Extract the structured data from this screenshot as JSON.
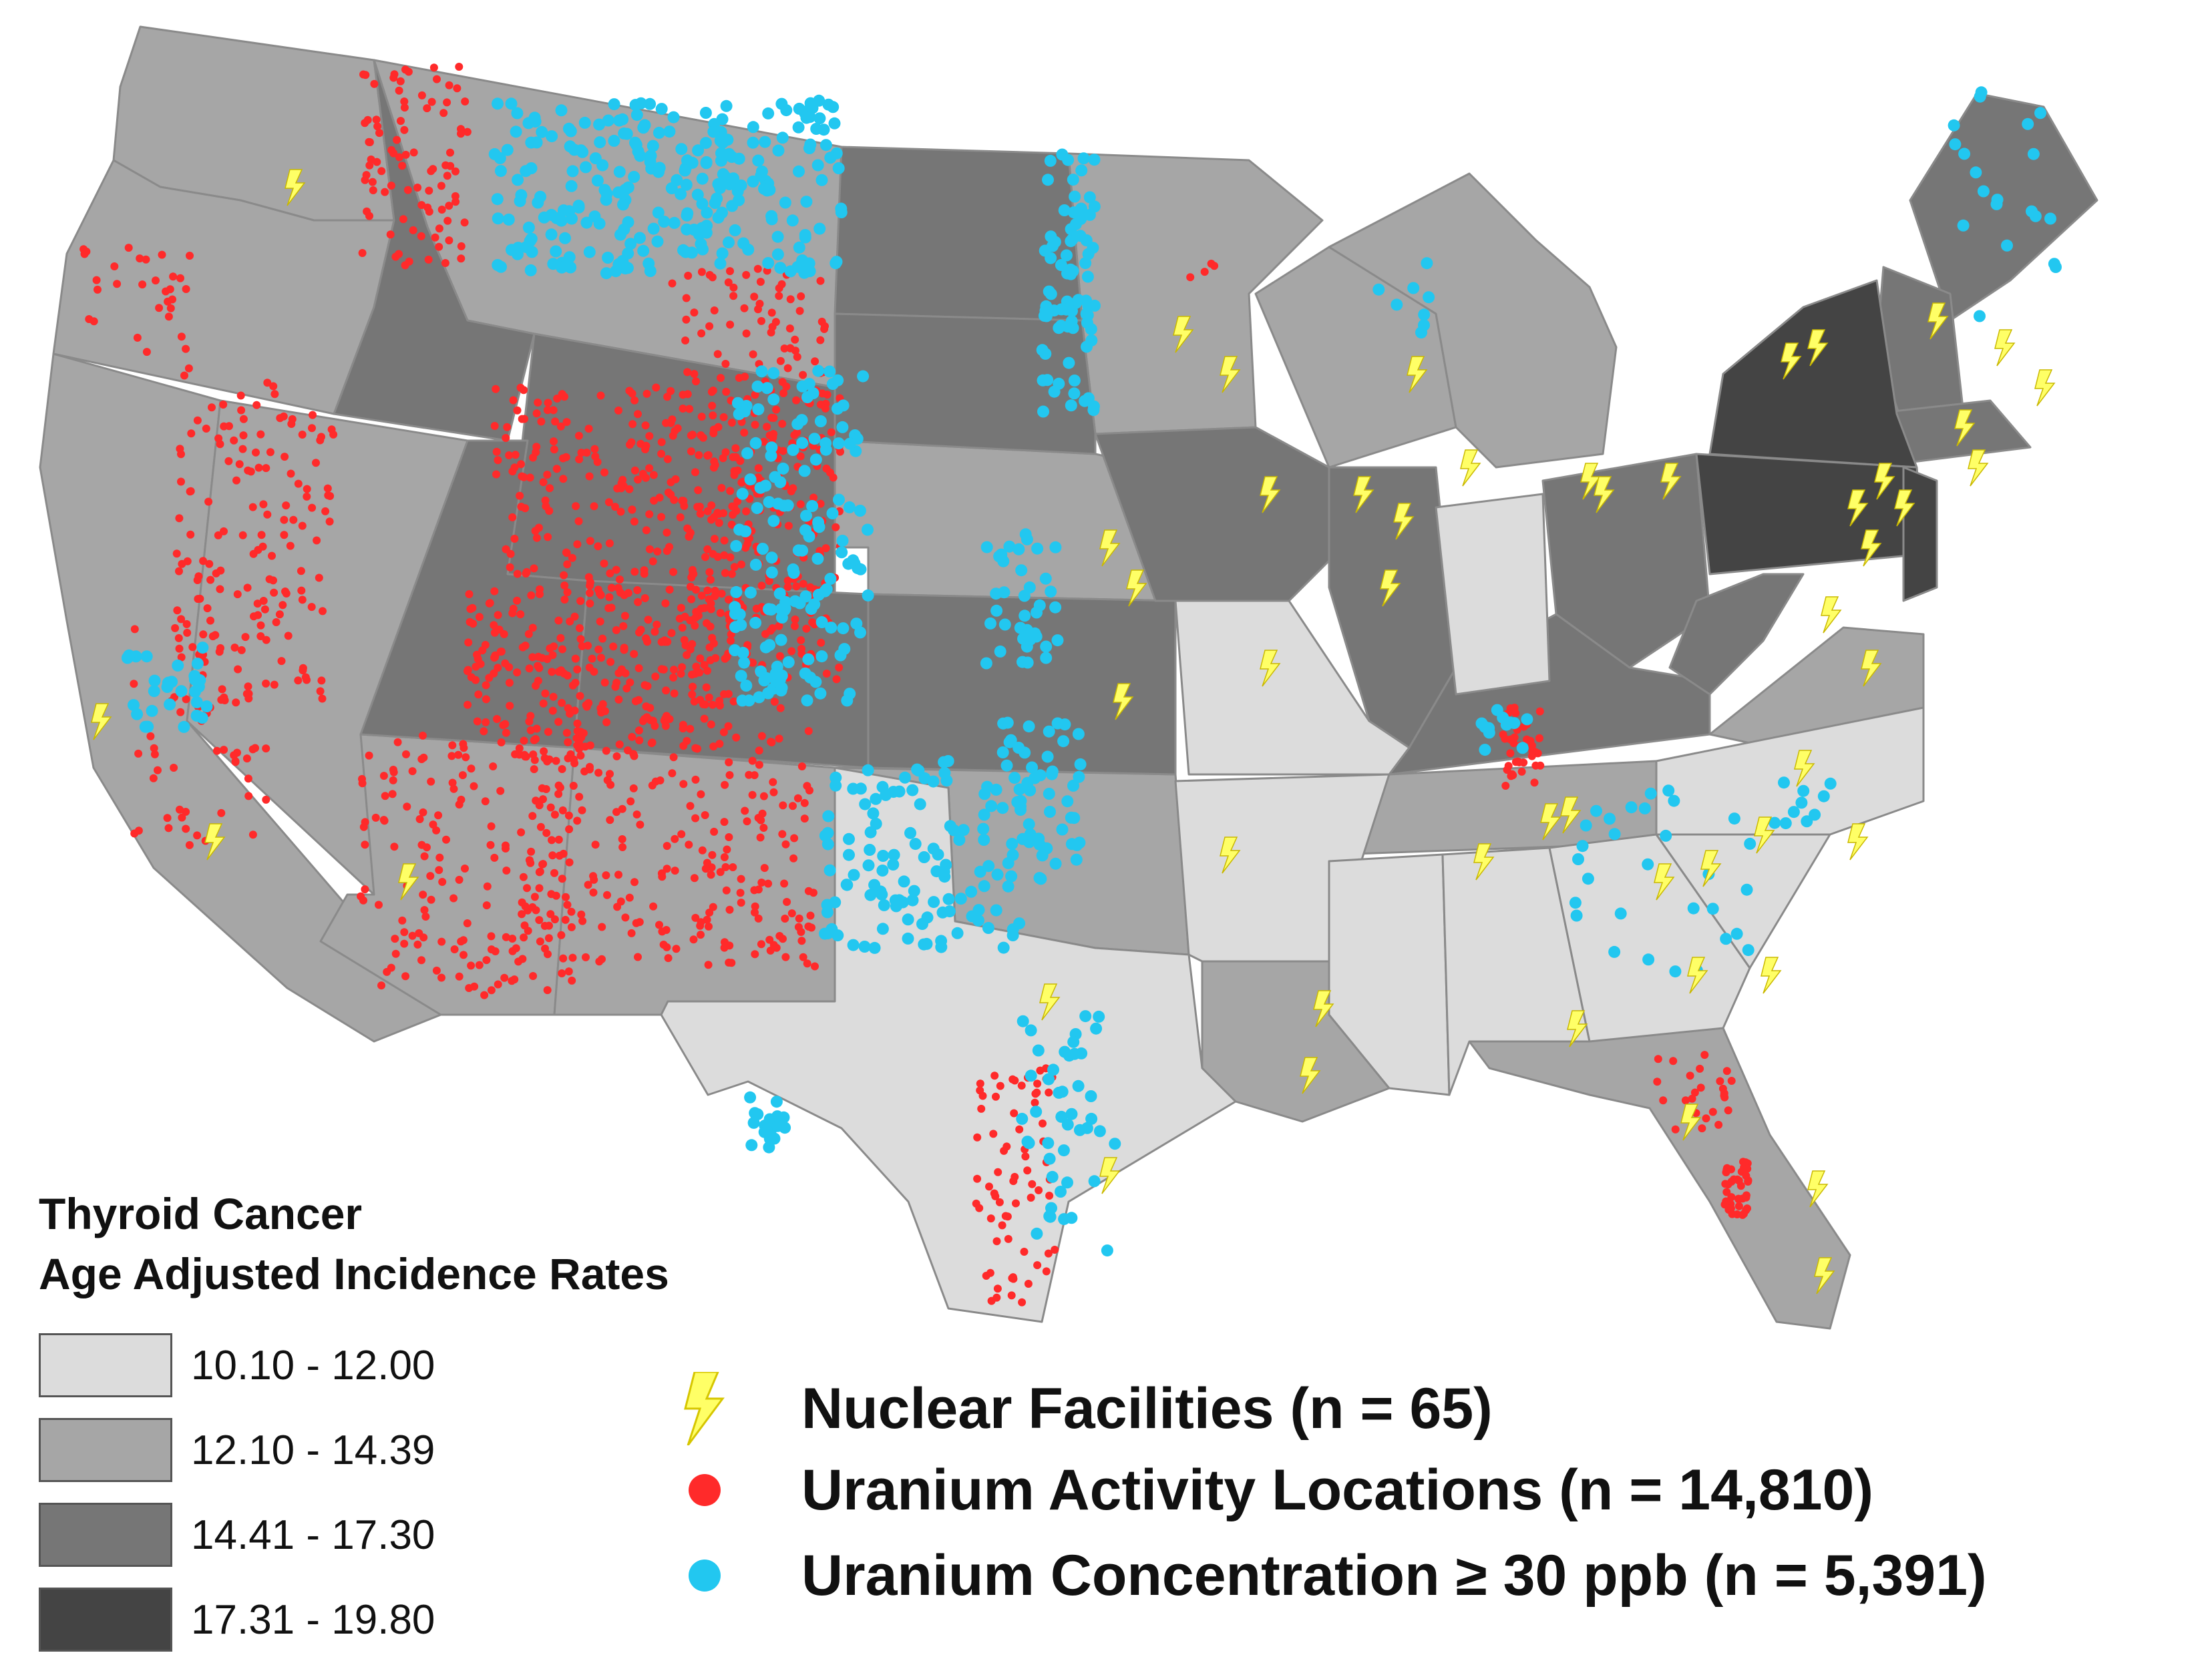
{
  "legend": {
    "title_line1": "Thyroid Cancer",
    "title_line2": "Age Adjusted Incidence Rates",
    "classes": [
      {
        "label": "10.10 - 12.00",
        "color": "#dcdcdc"
      },
      {
        "label": "12.10 - 14.39",
        "color": "#a6a6a6"
      },
      {
        "label": "14.41 - 17.30",
        "color": "#767676"
      },
      {
        "label": "17.31 - 19.80",
        "color": "#444444"
      }
    ]
  },
  "symbols": {
    "nuclear": {
      "label": "Nuclear Facilities (n = 65)",
      "color": "#ffff66",
      "icon": "lightning-bolt-icon"
    },
    "uranium_activity": {
      "label": "Uranium Activity Locations (n = 14,810)",
      "color": "#ff2a2a",
      "icon": "red-dot-icon"
    },
    "uranium_concentration": {
      "label": "Uranium Concentration ≥ 30 ppb (n = 5,391)",
      "color": "#22c7f0",
      "icon": "cyan-dot-icon"
    }
  }
}
